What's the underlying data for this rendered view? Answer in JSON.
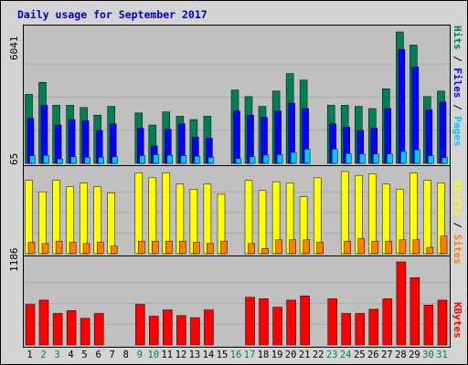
{
  "title": "Daily usage for September 2017",
  "colors": {
    "hits": "#007f55",
    "files": "#0000ff",
    "pages": "#00c8ff",
    "visits": "#ffff00",
    "sites": "#ff8000",
    "kbytes": "#ff0000",
    "title": "#0000c0",
    "weekend_label": "#007f55",
    "weekday_label": "#000000",
    "panel_bg": "#c0c0c0",
    "frame_bg": "#d4d4d4"
  },
  "chart_data": [
    {
      "type": "bar",
      "name": "hits-files-pages",
      "ylabel": "6041",
      "ymax": 6041,
      "legend": [
        "Pages",
        "Files",
        "Hits"
      ],
      "legend_separator": " / ",
      "days": [
        1,
        2,
        3,
        4,
        5,
        6,
        7,
        8,
        9,
        10,
        11,
        12,
        13,
        14,
        15,
        16,
        17,
        18,
        19,
        20,
        21,
        22,
        23,
        24,
        25,
        26,
        27,
        28,
        29,
        30,
        31
      ],
      "series": [
        {
          "name": "Hits",
          "values": [
            3150,
            3700,
            2650,
            2650,
            2550,
            2200,
            2600,
            0,
            2300,
            1750,
            2350,
            2150,
            2000,
            2150,
            0,
            3350,
            3050,
            2600,
            3300,
            4100,
            3800,
            0,
            2650,
            2650,
            2600,
            2500,
            3400,
            6000,
            5400,
            3050,
            3300
          ]
        },
        {
          "name": "Files",
          "values": [
            2050,
            2650,
            1750,
            2000,
            1950,
            1500,
            1800,
            0,
            1600,
            800,
            1550,
            1800,
            1200,
            1150,
            0,
            2400,
            2200,
            2100,
            2400,
            2750,
            2500,
            0,
            1800,
            1650,
            1500,
            1600,
            2500,
            5200,
            4400,
            2450,
            2800
          ]
        },
        {
          "name": "Pages",
          "values": [
            350,
            370,
            200,
            300,
            270,
            280,
            300,
            0,
            350,
            400,
            370,
            350,
            330,
            270,
            0,
            220,
            300,
            380,
            400,
            500,
            650,
            0,
            650,
            450,
            420,
            430,
            430,
            540,
            620,
            350,
            260
          ]
        }
      ]
    },
    {
      "type": "bar",
      "name": "visits-sites",
      "ylabel": "65",
      "ymax": 65,
      "legend": [
        "Sites",
        "Visits"
      ],
      "legend_separator": " / ",
      "days": [
        1,
        2,
        3,
        4,
        5,
        6,
        7,
        8,
        9,
        10,
        11,
        12,
        13,
        14,
        15,
        16,
        17,
        18,
        19,
        20,
        21,
        22,
        23,
        24,
        25,
        26,
        27,
        28,
        29,
        30,
        31
      ],
      "series": [
        {
          "name": "Visits",
          "values": [
            58,
            49,
            58,
            53,
            56,
            53,
            48,
            0,
            64,
            60,
            64,
            55,
            51,
            55,
            47,
            0,
            58,
            50,
            57,
            56,
            45,
            60,
            0,
            65,
            62,
            63,
            55,
            51,
            64,
            58,
            56
          ]
        },
        {
          "name": "Sites",
          "values": [
            9,
            8,
            10,
            9,
            8,
            9,
            6,
            0,
            10,
            10,
            10,
            10,
            9,
            8,
            10,
            0,
            8,
            4,
            11,
            11,
            11,
            9,
            0,
            10,
            12,
            10,
            10,
            11,
            11,
            5,
            14
          ]
        }
      ]
    },
    {
      "type": "bar",
      "name": "kbytes",
      "ylabel": "1186",
      "ymax": 1186,
      "legend": [
        "KBytes"
      ],
      "legend_separator": "",
      "days": [
        1,
        2,
        3,
        4,
        5,
        6,
        7,
        8,
        9,
        10,
        11,
        12,
        13,
        14,
        15,
        16,
        17,
        18,
        19,
        20,
        21,
        22,
        23,
        24,
        25,
        26,
        27,
        28,
        29,
        30,
        31
      ],
      "series": [
        {
          "name": "KBytes",
          "values": [
            580,
            640,
            450,
            490,
            380,
            450,
            0,
            0,
            580,
            410,
            500,
            420,
            390,
            500,
            0,
            0,
            680,
            660,
            540,
            640,
            700,
            0,
            660,
            450,
            450,
            510,
            660,
            1186,
            960,
            570,
            640
          ]
        }
      ]
    }
  ],
  "day_labels": [
    "1",
    "2",
    "3",
    "4",
    "5",
    "6",
    "7",
    "8",
    "9",
    "10",
    "11",
    "12",
    "13",
    "14",
    "15",
    "16",
    "17",
    "18",
    "19",
    "20",
    "21",
    "22",
    "23",
    "24",
    "25",
    "26",
    "27",
    "28",
    "29",
    "30",
    "31"
  ],
  "weekend_days": [
    2,
    3,
    9,
    10,
    16,
    17,
    23,
    24,
    30,
    31
  ]
}
